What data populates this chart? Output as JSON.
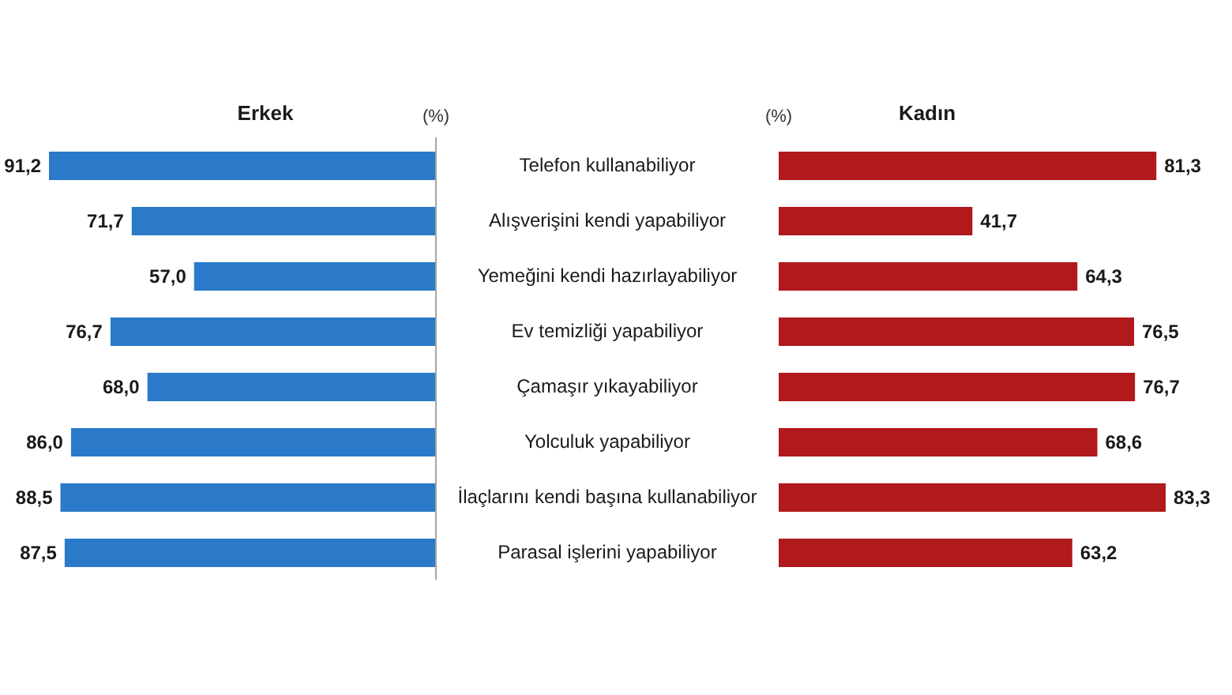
{
  "chart_data": [
    {
      "type": "bar",
      "orientation": "horizontal",
      "title": "Erkek",
      "xlabel": "(%)",
      "categories": [
        "Telefon kullanabiliyor",
        "Alışverişini kendi yapabiliyor",
        "Yemeğini kendi hazırlayabiliyor",
        "Ev temizliği yapabiliyor",
        "Çamaşır yıkayabiliyor",
        "Yolculuk yapabiliyor",
        "İlaçlarını kendi başına kullanabiliyor",
        "Parasal işlerini yapabiliyor"
      ],
      "values": [
        91.2,
        71.7,
        57.0,
        76.7,
        68.0,
        86.0,
        88.5,
        87.5
      ],
      "value_labels": [
        "91,2",
        "71,7",
        "57,0",
        "76,7",
        "68,0",
        "86,0",
        "88,5",
        "87,5"
      ],
      "color": "#2a7ac9"
    },
    {
      "type": "bar",
      "orientation": "horizontal",
      "title": "Kadın",
      "xlabel": "(%)",
      "categories": [
        null,
        null,
        null,
        null,
        null,
        null,
        null,
        null
      ],
      "values": [
        81.3,
        41.7,
        64.3,
        76.5,
        76.7,
        68.6,
        83.3,
        63.2
      ],
      "value_labels": [
        "81,3",
        "41,7",
        "64,3",
        "76,5",
        "76,7",
        "68,6",
        "83,3",
        "63,2"
      ],
      "color": "#b01a1c"
    }
  ]
}
